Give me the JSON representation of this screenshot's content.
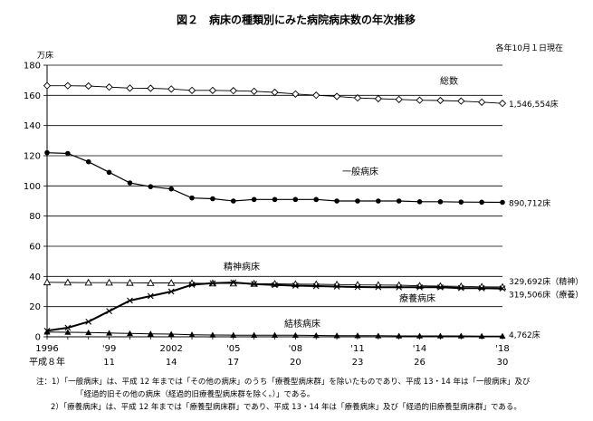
{
  "title": "図２　病床の種類別にみた病院病床数の年次推移",
  "subtitle": "各年10月１日現在",
  "notes": [
    "注：1）「一般病床」は、平成 12 年までは「その他の病床」のうち「療養型病床群」を除いたものであり、平成 13・14 年は「一般病床」及び",
    "「経過的旧その他の病床（経過的旧療養型病床群を除く。）」である。",
    "2）「療養病床」は、平成 12 年までは「療養型病床群」であり、平成 13・14 年は「療養病床」及び「経過的旧療養型病床群」である。"
  ],
  "chart_data": {
    "type": "line",
    "ylabel": "万床",
    "ylim": [
      0,
      180
    ],
    "yticks": [
      0,
      20,
      40,
      60,
      80,
      100,
      120,
      140,
      160,
      180
    ],
    "x": [
      1996,
      1997,
      1998,
      1999,
      2000,
      2001,
      2002,
      2003,
      2004,
      2005,
      2006,
      2007,
      2008,
      2009,
      2010,
      2011,
      2012,
      2013,
      2014,
      2015,
      2016,
      2017,
      2018
    ],
    "xlim": [
      1996,
      2018
    ],
    "xticks": [
      {
        "x": 1996,
        "label": "1996"
      },
      {
        "x": 1999,
        "label": "'99"
      },
      {
        "x": 2002,
        "label": "2002"
      },
      {
        "x": 2005,
        "label": "'05"
      },
      {
        "x": 2008,
        "label": "'08"
      },
      {
        "x": 2011,
        "label": "'11"
      },
      {
        "x": 2014,
        "label": "'14"
      },
      {
        "x": 2018,
        "label": "'18"
      }
    ],
    "era_ticks": [
      {
        "x": 1996,
        "label": "平成８年"
      },
      {
        "x": 1999,
        "label": "11"
      },
      {
        "x": 2002,
        "label": "14"
      },
      {
        "x": 2005,
        "label": "17"
      },
      {
        "x": 2008,
        "label": "20"
      },
      {
        "x": 2011,
        "label": "23"
      },
      {
        "x": 2014,
        "label": "26"
      },
      {
        "x": 2018,
        "label": "30"
      }
    ],
    "grid": true,
    "series": [
      {
        "name": "総数",
        "marker": "diamond",
        "end_label": "1,546,554床",
        "values": [
          166.4,
          166.4,
          166.2,
          165.5,
          164.8,
          164.7,
          164.2,
          163.3,
          163.3,
          163.1,
          162.7,
          162.0,
          160.9,
          160.1,
          159.3,
          158.3,
          157.8,
          157.3,
          156.8,
          156.6,
          156.2,
          155.5,
          154.7
        ]
      },
      {
        "name": "一般病床",
        "marker": "circle",
        "end_label": "890,712床",
        "values": [
          122.0,
          121.5,
          116.0,
          109.0,
          102.0,
          99.5,
          98.0,
          92.0,
          91.5,
          90.0,
          91.0,
          91.0,
          91.0,
          91.0,
          90.0,
          90.0,
          90.0,
          90.0,
          89.5,
          89.5,
          89.3,
          89.2,
          89.1
        ]
      },
      {
        "name": "精神病床",
        "marker": "triangle-open",
        "end_label": "329,692床（精神）",
        "values": [
          36.1,
          36.0,
          35.9,
          35.9,
          35.8,
          35.7,
          35.7,
          35.5,
          35.4,
          35.4,
          35.2,
          35.1,
          34.9,
          34.8,
          34.6,
          34.4,
          34.3,
          34.2,
          33.8,
          33.6,
          33.4,
          33.1,
          33.0
        ]
      },
      {
        "name": "療養病床",
        "marker": "x",
        "end_label": "319,506床（療養）",
        "values": [
          4.0,
          6.0,
          10.0,
          17.0,
          24.0,
          27.0,
          30.0,
          34.5,
          35.5,
          36.0,
          35.0,
          34.3,
          33.9,
          33.6,
          33.3,
          33.0,
          32.9,
          32.8,
          32.8,
          32.8,
          32.3,
          32.2,
          32.0
        ]
      },
      {
        "name": "結核病床",
        "marker": "triangle-filled",
        "end_label": "4,762床",
        "values": [
          3.2,
          3.0,
          2.8,
          2.5,
          2.2,
          2.0,
          1.8,
          1.4,
          1.2,
          1.1,
          1.1,
          1.1,
          1.0,
          0.9,
          0.8,
          0.8,
          0.7,
          0.6,
          0.6,
          0.6,
          0.6,
          0.5,
          0.5
        ]
      }
    ]
  }
}
